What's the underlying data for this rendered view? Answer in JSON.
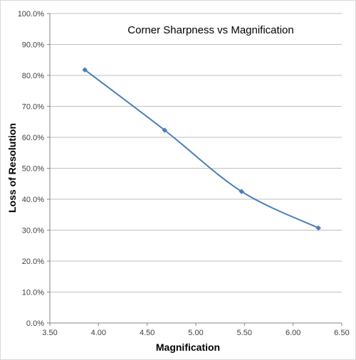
{
  "chart_data": {
    "type": "scatter",
    "title": "Corner Sharpness vs Magnification",
    "xlabel": "Magnification",
    "ylabel": "Loss of Resolution",
    "xlim": [
      3.5,
      6.5
    ],
    "ylim": [
      0,
      100
    ],
    "x_ticks": [
      "3.50",
      "4.00",
      "4.50",
      "5.00",
      "5.50",
      "6.00",
      "6.50"
    ],
    "y_ticks": [
      "0.0%",
      "10.0%",
      "20.0%",
      "30.0%",
      "40.0%",
      "50.0%",
      "60.0%",
      "70.0%",
      "80.0%",
      "90.0%",
      "100.0%"
    ],
    "grid": "horizontal",
    "legend": "none",
    "line_style": "smooth with markers",
    "series": [
      {
        "color": "#4a7ebb",
        "x": [
          3.86,
          4.68,
          5.47,
          6.26
        ],
        "y": [
          81.8,
          62.3,
          42.5,
          30.7
        ]
      }
    ]
  }
}
